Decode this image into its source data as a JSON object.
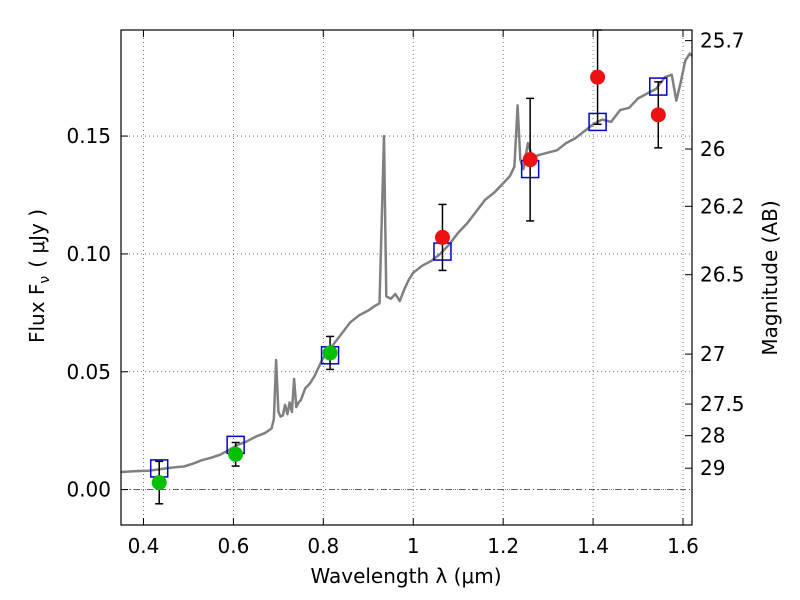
{
  "chart_data": {
    "type": "scatter",
    "xlabel": "Wavelength  λ (μm)",
    "ylabel": "Flux  F",
    "ylabel_sub": "ν",
    "ylabel_unit": "( μJy )",
    "y2label": "Magnitude (AB)",
    "xlim": [
      0.35,
      1.62
    ],
    "ylim": [
      -0.015,
      0.195
    ],
    "x_ticks": [
      0.4,
      0.6,
      0.8,
      1.0,
      1.2,
      1.4,
      1.6
    ],
    "x_tick_labels": [
      "0.4",
      "0.6",
      "0.8",
      "1",
      "1.2",
      "1.4",
      "1.6"
    ],
    "y_ticks": [
      0.0,
      0.05,
      0.1,
      0.15
    ],
    "y_tick_labels": [
      "0.00",
      "0.05",
      "0.10",
      "0.15"
    ],
    "y2_ticks": [
      {
        "label": "25.7",
        "flux": 0.1905
      },
      {
        "label": "26",
        "flux": 0.1445
      },
      {
        "label": "26.2",
        "flux": 0.1202
      },
      {
        "label": "26.5",
        "flux": 0.0912
      },
      {
        "label": "27",
        "flux": 0.0575
      },
      {
        "label": "27.5",
        "flux": 0.0363
      },
      {
        "label": "28",
        "flux": 0.0229
      },
      {
        "label": "29",
        "flux": 0.0091
      }
    ],
    "grid": true,
    "zero_line": true,
    "colors": {
      "spectrum": "#808080",
      "observed_green": "#00c000",
      "observed_red": "#ee1111",
      "model": "#0000cc",
      "errorbar": "#000000",
      "grid": "#555555"
    },
    "spectrum": [
      [
        0.35,
        0.0075
      ],
      [
        0.37,
        0.0077
      ],
      [
        0.39,
        0.0079
      ],
      [
        0.41,
        0.008
      ],
      [
        0.43,
        0.0085
      ],
      [
        0.45,
        0.009
      ],
      [
        0.47,
        0.0095
      ],
      [
        0.49,
        0.0098
      ],
      [
        0.51,
        0.011
      ],
      [
        0.53,
        0.0125
      ],
      [
        0.55,
        0.0135
      ],
      [
        0.57,
        0.0148
      ],
      [
        0.59,
        0.0168
      ],
      [
        0.61,
        0.019
      ],
      [
        0.63,
        0.0205
      ],
      [
        0.65,
        0.0225
      ],
      [
        0.67,
        0.024
      ],
      [
        0.685,
        0.026
      ],
      [
        0.69,
        0.03
      ],
      [
        0.695,
        0.055
      ],
      [
        0.7,
        0.033
      ],
      [
        0.705,
        0.031
      ],
      [
        0.71,
        0.0315
      ],
      [
        0.715,
        0.036
      ],
      [
        0.72,
        0.032
      ],
      [
        0.725,
        0.037
      ],
      [
        0.73,
        0.033
      ],
      [
        0.735,
        0.047
      ],
      [
        0.74,
        0.035
      ],
      [
        0.745,
        0.037
      ],
      [
        0.75,
        0.038
      ],
      [
        0.76,
        0.043
      ],
      [
        0.77,
        0.045
      ],
      [
        0.78,
        0.048
      ],
      [
        0.79,
        0.052
      ],
      [
        0.8,
        0.056
      ],
      [
        0.82,
        0.061
      ],
      [
        0.84,
        0.066
      ],
      [
        0.86,
        0.071
      ],
      [
        0.88,
        0.074
      ],
      [
        0.9,
        0.076
      ],
      [
        0.915,
        0.078
      ],
      [
        0.925,
        0.079
      ],
      [
        0.935,
        0.15
      ],
      [
        0.94,
        0.082
      ],
      [
        0.95,
        0.081
      ],
      [
        0.96,
        0.083
      ],
      [
        0.97,
        0.08
      ],
      [
        0.98,
        0.085
      ],
      [
        0.99,
        0.089
      ],
      [
        1.0,
        0.092
      ],
      [
        1.02,
        0.095
      ],
      [
        1.04,
        0.097
      ],
      [
        1.06,
        0.1
      ],
      [
        1.08,
        0.104
      ],
      [
        1.1,
        0.109
      ],
      [
        1.12,
        0.113
      ],
      [
        1.14,
        0.118
      ],
      [
        1.16,
        0.123
      ],
      [
        1.18,
        0.126
      ],
      [
        1.2,
        0.13
      ],
      [
        1.215,
        0.133
      ],
      [
        1.225,
        0.137
      ],
      [
        1.232,
        0.163
      ],
      [
        1.238,
        0.14
      ],
      [
        1.245,
        0.136
      ],
      [
        1.255,
        0.147
      ],
      [
        1.265,
        0.141
      ],
      [
        1.28,
        0.142
      ],
      [
        1.3,
        0.143
      ],
      [
        1.32,
        0.144
      ],
      [
        1.34,
        0.147
      ],
      [
        1.36,
        0.149
      ],
      [
        1.38,
        0.152
      ],
      [
        1.4,
        0.155
      ],
      [
        1.42,
        0.157
      ],
      [
        1.44,
        0.156
      ],
      [
        1.46,
        0.161
      ],
      [
        1.48,
        0.162
      ],
      [
        1.5,
        0.166
      ],
      [
        1.52,
        0.168
      ],
      [
        1.54,
        0.17
      ],
      [
        1.56,
        0.175
      ],
      [
        1.575,
        0.176
      ],
      [
        1.585,
        0.165
      ],
      [
        1.595,
        0.173
      ],
      [
        1.605,
        0.182
      ],
      [
        1.615,
        0.185
      ],
      [
        1.62,
        0.184
      ]
    ],
    "observed": [
      {
        "x": 0.435,
        "y": 0.003,
        "err": 0.009,
        "color": "green"
      },
      {
        "x": 0.605,
        "y": 0.015,
        "err": 0.005,
        "color": "green"
      },
      {
        "x": 0.815,
        "y": 0.058,
        "err": 0.007,
        "color": "green"
      },
      {
        "x": 1.065,
        "y": 0.107,
        "err": 0.014,
        "color": "red"
      },
      {
        "x": 1.26,
        "y": 0.14,
        "err": 0.026,
        "color": "red"
      },
      {
        "x": 1.41,
        "y": 0.175,
        "err": 0.02,
        "color": "red"
      },
      {
        "x": 1.545,
        "y": 0.159,
        "err": 0.014,
        "color": "red"
      }
    ],
    "model_points": [
      {
        "x": 0.435,
        "y": 0.009
      },
      {
        "x": 0.605,
        "y": 0.019
      },
      {
        "x": 0.815,
        "y": 0.057
      },
      {
        "x": 1.065,
        "y": 0.101
      },
      {
        "x": 1.26,
        "y": 0.136
      },
      {
        "x": 1.41,
        "y": 0.156
      },
      {
        "x": 1.545,
        "y": 0.171
      }
    ]
  }
}
